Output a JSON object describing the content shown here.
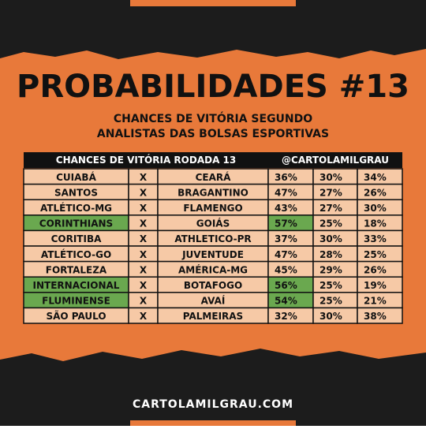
{
  "header": {
    "title": "PROBABILIDADES #13",
    "subtitle": [
      "CHANCES DE VITÓRIA SEGUNDO",
      "ANALISTAS DAS BOLSAS ESPORTIVAS"
    ]
  },
  "table": {
    "columns": [
      "CHANCES DE VITÓRIA RODADA 13",
      "@CARTOLAMILGRAU"
    ],
    "rows": [
      {
        "home": "CUIABÁ",
        "vs": "X",
        "away": "CEARÁ",
        "probabilities": [
          "36%",
          "30%",
          "34%"
        ],
        "highlight": false
      },
      {
        "home": "SANTOS",
        "vs": "X",
        "away": "BRAGANTINO",
        "probabilities": [
          "47%",
          "27%",
          "26%"
        ],
        "highlight": false
      },
      {
        "home": "ATLÉTICO-MG",
        "vs": "X",
        "away": "FLAMENGO",
        "probabilities": [
          "43%",
          "27%",
          "30%"
        ],
        "highlight": false
      },
      {
        "home": "CORINTHIANS",
        "vs": "X",
        "away": "GOIÁS",
        "probabilities": [
          "57%",
          "25%",
          "18%"
        ],
        "highlight": true
      },
      {
        "home": "CORITIBA",
        "vs": "X",
        "away": "ATHLETICO-PR",
        "probabilities": [
          "37%",
          "30%",
          "33%"
        ],
        "highlight": false
      },
      {
        "home": "ATLÉTICO-GO",
        "vs": "X",
        "away": "JUVENTUDE",
        "probabilities": [
          "47%",
          "28%",
          "25%"
        ],
        "highlight": false
      },
      {
        "home": "FORTALEZA",
        "vs": "X",
        "away": "AMÉRICA-MG",
        "probabilities": [
          "45%",
          "29%",
          "26%"
        ],
        "highlight": false
      },
      {
        "home": "INTERNACIONAL",
        "vs": "X",
        "away": "BOTAFOGO",
        "probabilities": [
          "56%",
          "25%",
          "19%"
        ],
        "highlight": true
      },
      {
        "home": "FLUMINENSE",
        "vs": "X",
        "away": "AVAÍ",
        "probabilities": [
          "54%",
          "25%",
          "21%"
        ],
        "highlight": true
      },
      {
        "home": "SÃO PAULO",
        "vs": "X",
        "away": "PALMEIRAS",
        "probabilities": [
          "32%",
          "30%",
          "38%"
        ],
        "highlight": false
      }
    ]
  },
  "footer": {
    "website": "CARTOLAMILGRAU.COM"
  }
}
